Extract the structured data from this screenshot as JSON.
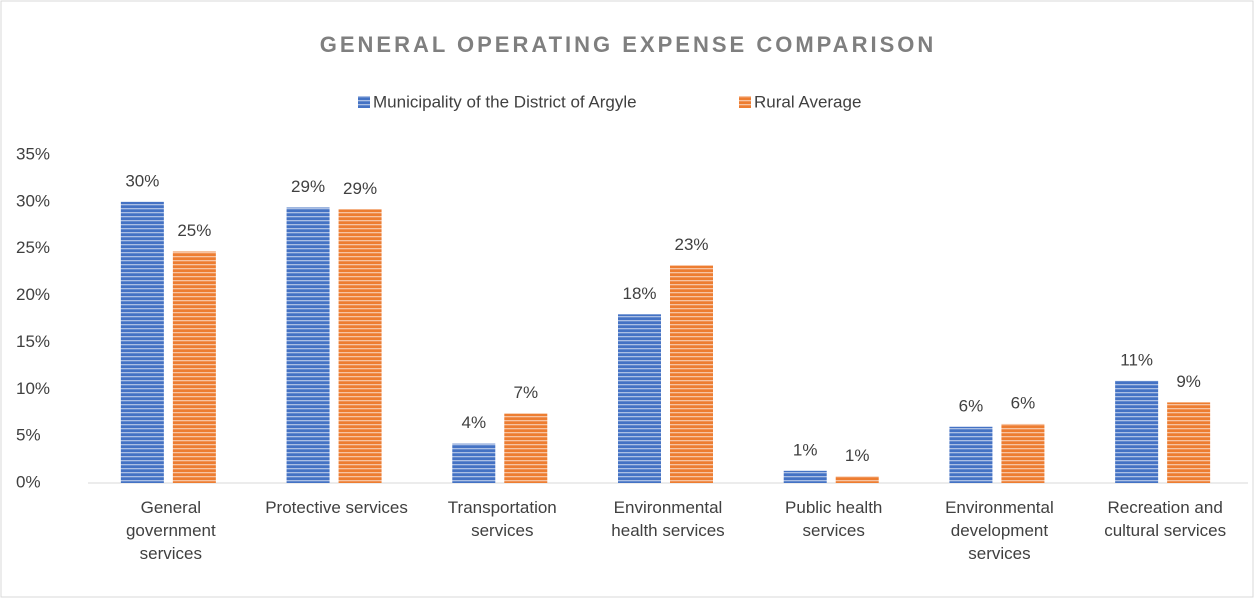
{
  "chart_data": {
    "type": "bar",
    "title": "GENERAL OPERATING EXPENSE COMPARISON",
    "categories": [
      "General government services",
      "Protective services",
      "Transportation services",
      "Environmental health services",
      "Public health services",
      "Environmental development services",
      "Recreation and cultural services"
    ],
    "series": [
      {
        "name": "Municipality of the District of Argyle",
        "color": "#4472c4",
        "values": [
          30.0,
          29.4,
          4.2,
          18.0,
          1.3,
          6.0,
          10.9
        ],
        "value_labels": [
          "30%",
          "29%",
          "4%",
          "18%",
          "1%",
          "6%",
          "11%"
        ]
      },
      {
        "name": "Rural Average",
        "color": "#ed7d31",
        "values": [
          24.7,
          29.2,
          7.4,
          23.2,
          0.7,
          6.3,
          8.6
        ],
        "value_labels": [
          "25%",
          "29%",
          "7%",
          "23%",
          "1%",
          "6%",
          "9%"
        ]
      }
    ],
    "ylim": [
      0,
      35
    ],
    "yticks": [
      {
        "value": 0,
        "label": "0%"
      },
      {
        "value": 5,
        "label": "5%"
      },
      {
        "value": 10,
        "label": "10%"
      },
      {
        "value": 15,
        "label": "15%"
      },
      {
        "value": 20,
        "label": "20%"
      },
      {
        "value": 25,
        "label": "25%"
      },
      {
        "value": 30,
        "label": "30%"
      },
      {
        "value": 35,
        "label": "35%"
      }
    ],
    "grid": false,
    "legend": "top"
  }
}
